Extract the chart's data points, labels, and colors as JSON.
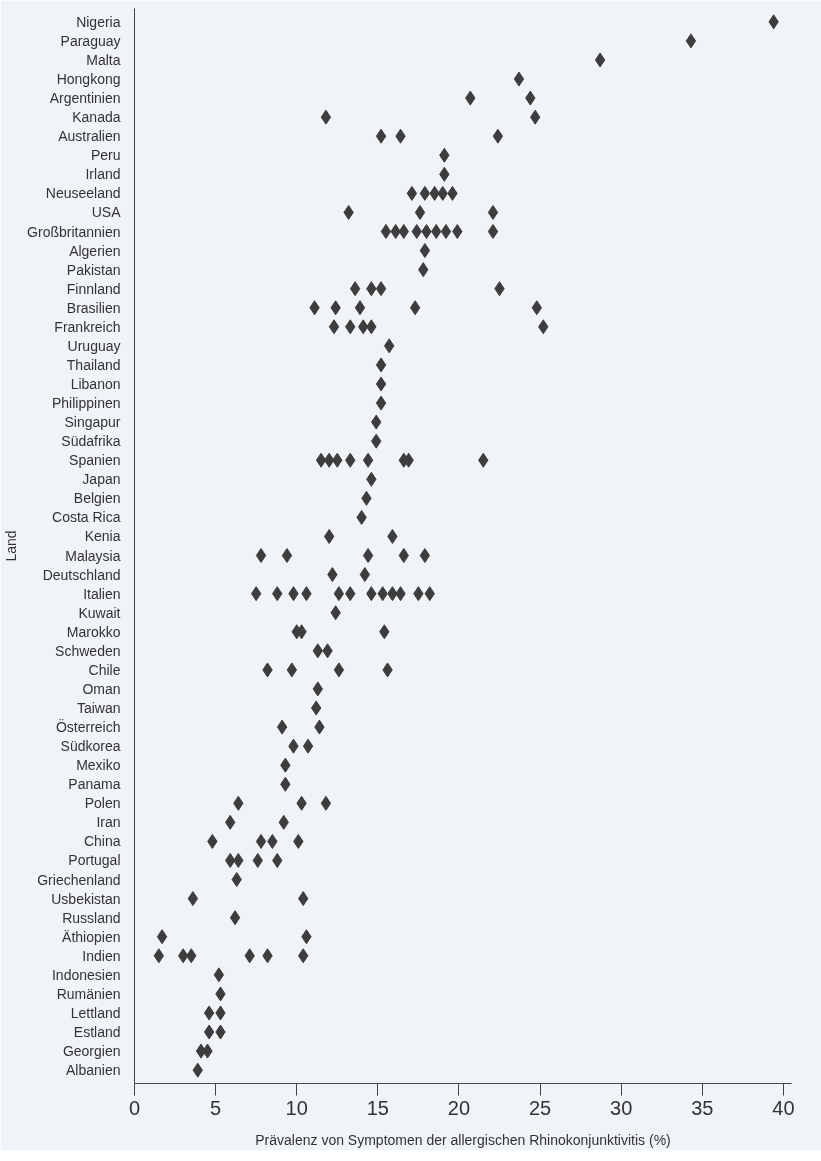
{
  "chart_data": {
    "type": "scatter",
    "orientation": "horizontal",
    "xlabel": "Prävalenz von Symptomen der allergischen Rhinokonjunktivitis (%)",
    "ylabel": "Land",
    "categories": [
      "Nigeria",
      "Paraguay",
      "Malta",
      "Hongkong",
      "Argentinien",
      "Kanada",
      "Australien",
      "Peru",
      "Irland",
      "Neuseeland",
      "USA",
      "Großbritannien",
      "Algerien",
      "Pakistan",
      "Finnland",
      "Brasilien",
      "Frankreich",
      "Uruguay",
      "Thailand",
      "Libanon",
      "Philippinen",
      "Singapur",
      "Südafrika",
      "Spanien",
      "Japan",
      "Belgien",
      "Costa Rica",
      "Kenia",
      "Malaysia",
      "Deutschland",
      "Italien",
      "Kuwait",
      "Marokko",
      "Schweden",
      "Chile",
      "Oman",
      "Taiwan",
      "Österreich",
      "Südkorea",
      "Mexiko",
      "Panama",
      "Polen",
      "Iran",
      "China",
      "Portugal",
      "Griechenland",
      "Usbekistan",
      "Russland",
      "Äthiopien",
      "Indien",
      "Indonesien",
      "Rumänien",
      "Lettland",
      "Estland",
      "Georgien",
      "Albanien"
    ],
    "series": [
      {
        "color": "#3d3d3d",
        "values": [
          39.4,
          34.3,
          28.7,
          23.7,
          20.7,
          11.8,
          15.2,
          19.1,
          19.1,
          17.1,
          13.2,
          15.5,
          17.9,
          17.8,
          13.6,
          11.1,
          12.3,
          15.7,
          15.2,
          15.2,
          15.2,
          14.9,
          14.9,
          11.5,
          14.6,
          14.3,
          14.0,
          12.0,
          7.8,
          12.2,
          7.5,
          12.4,
          10.0,
          11.3,
          8.2,
          11.3,
          11.2,
          9.1,
          9.8,
          9.3,
          9.3,
          6.4,
          5.9,
          4.8,
          5.9,
          6.3,
          3.6,
          6.2,
          1.7,
          1.5,
          5.2,
          5.3,
          4.6,
          4.6,
          4.1,
          3.9
        ]
      },
      {
        "color": "#3d3d3d",
        "values": [
          null,
          null,
          null,
          null,
          24.4,
          24.7,
          16.4,
          null,
          null,
          17.9,
          17.6,
          16.1,
          null,
          null,
          14.6,
          12.4,
          13.3,
          null,
          null,
          null,
          null,
          null,
          null,
          12.0,
          null,
          null,
          null,
          15.9,
          9.4,
          14.2,
          8.8,
          null,
          10.3,
          11.9,
          9.7,
          null,
          null,
          11.4,
          10.7,
          null,
          null,
          10.3,
          9.2,
          7.8,
          6.4,
          null,
          10.4,
          null,
          10.6,
          3.0,
          null,
          null,
          5.3,
          5.3,
          4.5,
          null
        ]
      },
      {
        "color": "#3d3d3d",
        "values": [
          null,
          null,
          null,
          null,
          null,
          null,
          22.4,
          null,
          null,
          18.5,
          22.1,
          16.6,
          null,
          null,
          15.2,
          13.9,
          14.1,
          null,
          null,
          null,
          null,
          null,
          null,
          12.5,
          null,
          null,
          null,
          null,
          14.4,
          null,
          9.8,
          null,
          15.4,
          null,
          12.6,
          null,
          null,
          null,
          null,
          null,
          null,
          11.8,
          null,
          8.5,
          7.6,
          null,
          null,
          null,
          null,
          3.5,
          null,
          null,
          null,
          null,
          null,
          null
        ]
      },
      {
        "color": "#3d3d3d",
        "values": [
          null,
          null,
          null,
          null,
          null,
          null,
          null,
          null,
          null,
          19.0,
          null,
          17.4,
          null,
          null,
          22.5,
          17.3,
          14.6,
          null,
          null,
          null,
          null,
          null,
          null,
          13.3,
          null,
          null,
          null,
          null,
          16.6,
          null,
          10.6,
          null,
          null,
          null,
          15.6,
          null,
          null,
          null,
          null,
          null,
          null,
          null,
          null,
          10.1,
          8.8,
          null,
          null,
          null,
          null,
          7.1,
          null,
          null,
          null,
          null,
          null,
          null
        ]
      },
      {
        "color": "#3d3d3d",
        "values": [
          null,
          null,
          null,
          null,
          null,
          null,
          null,
          null,
          null,
          19.6,
          null,
          18.0,
          null,
          null,
          null,
          24.8,
          25.2,
          null,
          null,
          null,
          null,
          null,
          null,
          14.4,
          null,
          null,
          null,
          null,
          17.9,
          null,
          12.6,
          null,
          null,
          null,
          null,
          null,
          null,
          null,
          null,
          null,
          null,
          null,
          null,
          null,
          null,
          null,
          null,
          null,
          null,
          8.2,
          null,
          null,
          null,
          null,
          null,
          null
        ]
      },
      {
        "color": "#3d3d3d",
        "values": [
          null,
          null,
          null,
          null,
          null,
          null,
          null,
          null,
          null,
          null,
          null,
          18.6,
          null,
          null,
          null,
          null,
          null,
          null,
          null,
          null,
          null,
          null,
          null,
          16.6,
          null,
          null,
          null,
          null,
          null,
          null,
          13.3,
          null,
          null,
          null,
          null,
          null,
          null,
          null,
          null,
          null,
          null,
          null,
          null,
          null,
          null,
          null,
          null,
          null,
          null,
          10.4,
          null,
          null,
          null,
          null,
          null,
          null
        ]
      },
      {
        "color": "#3d3d3d",
        "values": [
          null,
          null,
          null,
          null,
          null,
          null,
          null,
          null,
          null,
          null,
          null,
          19.2,
          null,
          null,
          null,
          null,
          null,
          null,
          null,
          null,
          null,
          null,
          null,
          16.9,
          null,
          null,
          null,
          null,
          null,
          null,
          14.6,
          null,
          null,
          null,
          null,
          null,
          null,
          null,
          null,
          null,
          null,
          null,
          null,
          null,
          null,
          null,
          null,
          null,
          null,
          null,
          null,
          null,
          null,
          null,
          null,
          null
        ]
      },
      {
        "color": "#3d3d3d",
        "values": [
          null,
          null,
          null,
          null,
          null,
          null,
          null,
          null,
          null,
          null,
          null,
          19.9,
          null,
          null,
          null,
          null,
          null,
          null,
          null,
          null,
          null,
          null,
          null,
          21.5,
          null,
          null,
          null,
          null,
          null,
          null,
          15.3,
          null,
          null,
          null,
          null,
          null,
          null,
          null,
          null,
          null,
          null,
          null,
          null,
          null,
          null,
          null,
          null,
          null,
          null,
          null,
          null,
          null,
          null,
          null,
          null,
          null
        ]
      },
      {
        "color": "#3d3d3d",
        "values": [
          null,
          null,
          null,
          null,
          null,
          null,
          null,
          null,
          null,
          null,
          null,
          22.1,
          null,
          null,
          null,
          null,
          null,
          null,
          null,
          null,
          null,
          null,
          null,
          null,
          null,
          null,
          null,
          null,
          null,
          null,
          15.9,
          null,
          null,
          null,
          null,
          null,
          null,
          null,
          null,
          null,
          null,
          null,
          null,
          null,
          null,
          null,
          null,
          null,
          null,
          null,
          null,
          null,
          null,
          null,
          null,
          null
        ]
      },
      {
        "color": "#3d3d3d",
        "values": [
          null,
          null,
          null,
          null,
          null,
          null,
          null,
          null,
          null,
          null,
          null,
          null,
          null,
          null,
          null,
          null,
          null,
          null,
          null,
          null,
          null,
          null,
          null,
          null,
          null,
          null,
          null,
          null,
          null,
          null,
          16.4,
          null,
          null,
          null,
          null,
          null,
          null,
          null,
          null,
          null,
          null,
          null,
          null,
          null,
          null,
          null,
          null,
          null,
          null,
          null,
          null,
          null,
          null,
          null,
          null,
          null
        ]
      },
      {
        "color": "#3d3d3d",
        "values": [
          null,
          null,
          null,
          null,
          null,
          null,
          null,
          null,
          null,
          null,
          null,
          null,
          null,
          null,
          null,
          null,
          null,
          null,
          null,
          null,
          null,
          null,
          null,
          null,
          null,
          null,
          null,
          null,
          null,
          null,
          17.5,
          null,
          null,
          null,
          null,
          null,
          null,
          null,
          null,
          null,
          null,
          null,
          null,
          null,
          null,
          null,
          null,
          null,
          null,
          null,
          null,
          null,
          null,
          null,
          null,
          null
        ]
      },
      {
        "color": "#3d3d3d",
        "values": [
          null,
          null,
          null,
          null,
          null,
          null,
          null,
          null,
          null,
          null,
          null,
          null,
          null,
          null,
          null,
          null,
          null,
          null,
          null,
          null,
          null,
          null,
          null,
          null,
          null,
          null,
          null,
          null,
          null,
          null,
          18.2,
          null,
          null,
          null,
          null,
          null,
          null,
          null,
          null,
          null,
          null,
          null,
          null,
          null,
          null,
          null,
          null,
          null,
          null,
          null,
          null,
          null,
          null,
          null,
          null,
          null
        ]
      }
    ],
    "xlim": [
      0,
      40.5
    ],
    "xticks": [
      0,
      5,
      10,
      15,
      20,
      25,
      30,
      35,
      40
    ],
    "grid": false,
    "marker": "diamond"
  }
}
